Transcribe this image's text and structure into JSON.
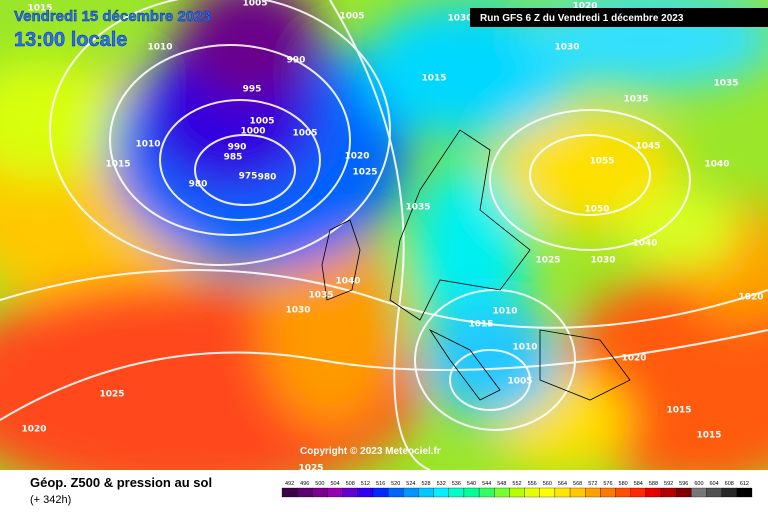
{
  "header": {
    "date": "Vendredi 15 décembre 2023",
    "time": "13:00 locale",
    "run": "Run GFS 6 Z du Vendredi 1 décembre 2023"
  },
  "copyright": "Copyright © 2023 Meteociel.fr",
  "footer": {
    "title": "Géop. Z500 & pression au sol",
    "lead": "(+ 342h)"
  },
  "isobar_labels": [
    1015,
    1005,
    1005,
    1030,
    1030,
    1020,
    1010,
    990,
    1015,
    1035,
    1035,
    995,
    1005,
    1000,
    1010,
    990,
    985,
    1005,
    1020,
    1015,
    1055,
    1045,
    1040,
    1025,
    975,
    980,
    980,
    1035,
    1050,
    1040,
    1025,
    1030,
    1040,
    1035,
    1030,
    1020,
    1015,
    1010,
    1010,
    1020,
    1005,
    1025,
    1020,
    1015,
    1015,
    1025
  ],
  "legend": {
    "labels": [
      492,
      496,
      500,
      504,
      508,
      512,
      516,
      520,
      524,
      528,
      532,
      536,
      540,
      544,
      548,
      552,
      556,
      560,
      564,
      568,
      572,
      576,
      580,
      584,
      588,
      592,
      596,
      600,
      604,
      608,
      612
    ],
    "colors": [
      "#3c0046",
      "#5a0070",
      "#7a0090",
      "#9600b4",
      "#6400d2",
      "#3200f0",
      "#0028ff",
      "#0064ff",
      "#0096ff",
      "#00c8ff",
      "#00f0ff",
      "#00ffc8",
      "#00ff96",
      "#32ff64",
      "#78ff32",
      "#b4ff00",
      "#e6ff00",
      "#ffff00",
      "#ffe600",
      "#ffc800",
      "#ffa000",
      "#ff7800",
      "#ff5000",
      "#ff2800",
      "#e60000",
      "#b40000",
      "#820000",
      "#787878",
      "#505050",
      "#282828",
      "#000000"
    ]
  }
}
